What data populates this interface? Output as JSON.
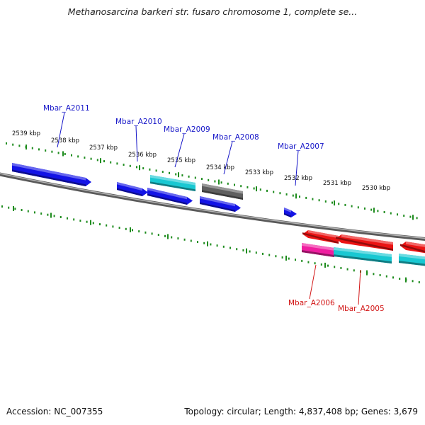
{
  "title": "Methanosarcina barkeri str. fusaro chromosome 1, complete se...",
  "accession": "Accession: NC_007355",
  "summary": "Topology: circular; Length: 4,837,408 bp; Genes: 3,679",
  "colors": {
    "backbone": "#7a7a7a",
    "ruler_tick": "#1e8c1e",
    "blue": "#1414e6",
    "cyan": "#19c8d2",
    "gray": "#5f5f5f",
    "red": "#eb1414",
    "magenta": "#f01ea0",
    "forward_label": "#1616c8",
    "reverse_label": "#d21414"
  },
  "ruler_labels": [
    "2539 kbp",
    "2538 kbp",
    "2537 kbp",
    "2536 kbp",
    "2535 kbp",
    "2534 kbp",
    "2533 kbp",
    "2532 kbp",
    "2531 kbp",
    "2530 kbp"
  ],
  "gene_labels": [
    {
      "name": "Mbar_A2011",
      "strand": "forward"
    },
    {
      "name": "Mbar_A2010",
      "strand": "forward"
    },
    {
      "name": "Mbar_A2009",
      "strand": "forward"
    },
    {
      "name": "Mbar_A2008",
      "strand": "forward"
    },
    {
      "name": "Mbar_A2007",
      "strand": "forward"
    },
    {
      "name": "Mbar_A2006",
      "strand": "reverse"
    },
    {
      "name": "Mbar_A2005",
      "strand": "reverse"
    }
  ]
}
